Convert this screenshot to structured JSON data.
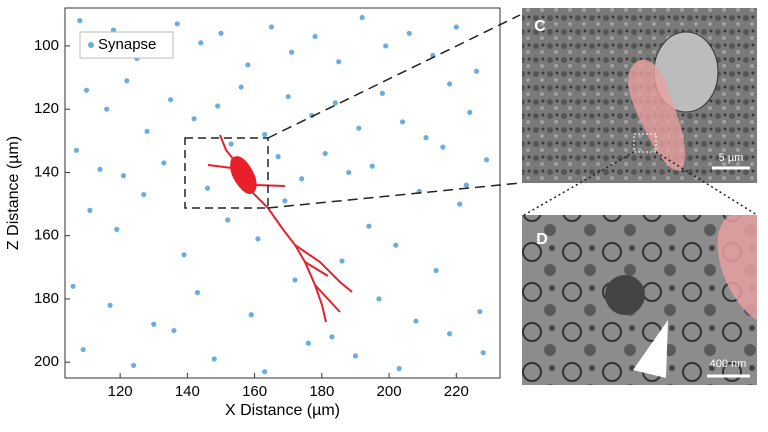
{
  "chart_data": {
    "type": "scatter",
    "xlabel": "X Distance (µm)",
    "ylabel": "Z Distance (µm)",
    "xlim": [
      103.6,
      233
    ],
    "ylim": [
      205,
      88
    ],
    "xticks": [
      120,
      140,
      160,
      180,
      200,
      220
    ],
    "yticks": [
      100,
      120,
      140,
      160,
      180,
      200
    ],
    "legend": "upper left",
    "series": [
      {
        "name": "Synapse",
        "color": "#6aaee0",
        "x": [
          108,
          112,
          118,
          125,
          131,
          137,
          144,
          150,
          158,
          165,
          171,
          178,
          185,
          192,
          199,
          206,
          213,
          220,
          226,
          110,
          116,
          122,
          128,
          135,
          142,
          149,
          156,
          163,
          170,
          177,
          184,
          191,
          198,
          204,
          211,
          218,
          224,
          107,
          114,
          121,
          133,
          146,
          153,
          167,
          174,
          181,
          188,
          195,
          209,
          216,
          223,
          229,
          111,
          119,
          127,
          139,
          152,
          161,
          169,
          186,
          194,
          202,
          214,
          221,
          106,
          117,
          130,
          143,
          159,
          172,
          183,
          197,
          208,
          227,
          109,
          124,
          136,
          148,
          163,
          176,
          190,
          203,
          218,
          228
        ],
        "values": [
          92,
          98,
          95,
          104,
          101,
          93,
          99,
          96,
          106,
          94,
          102,
          97,
          105,
          91,
          100,
          96,
          103,
          94,
          108,
          114,
          120,
          111,
          127,
          117,
          123,
          119,
          113,
          128,
          116,
          122,
          118,
          126,
          115,
          124,
          129,
          112,
          121,
          133,
          139,
          141,
          137,
          145,
          131,
          135,
          142,
          134,
          140,
          138,
          146,
          132,
          144,
          136,
          152,
          158,
          147,
          166,
          155,
          161,
          149,
          168,
          157,
          163,
          171,
          150,
          176,
          182,
          188,
          178,
          185,
          174,
          192,
          180,
          187,
          184,
          196,
          201,
          190,
          199,
          203,
          194,
          198,
          202,
          191,
          197
        ]
      }
    ]
  },
  "panels": [
    {
      "label": "C",
      "scale_bar": "5 µm"
    },
    {
      "label": "D",
      "scale_bar": "400 nm"
    }
  ]
}
